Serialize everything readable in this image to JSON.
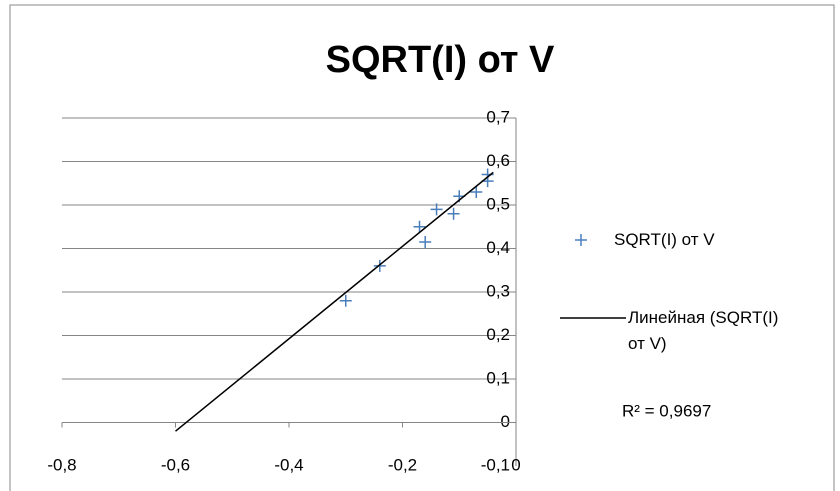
{
  "chart_data": {
    "type": "scatter",
    "title": "SQRT(I) от V",
    "series": [
      {
        "name": "SQRT(I) от V",
        "color": "#4a7ebb",
        "x": [
          -0.3,
          -0.24,
          -0.17,
          -0.16,
          -0.14,
          -0.11,
          -0.1,
          -0.07,
          -0.05,
          -0.05
        ],
        "values": [
          0.28,
          0.36,
          0.45,
          0.415,
          0.49,
          0.48,
          0.52,
          0.53,
          0.57,
          0.555
        ]
      }
    ],
    "trendline": {
      "name": "Линейная (SQRT(I) от V)",
      "color": "#000000",
      "x": [
        -0.6,
        -0.04
      ],
      "values": [
        -0.02,
        0.575
      ],
      "r2_label": "R² = 0,9697"
    },
    "xlim": [
      -0.8,
      0
    ],
    "xticks": [
      {
        "value": -0.8,
        "label": "-0,8"
      },
      {
        "value": -0.6,
        "label": "-0,6"
      },
      {
        "value": -0.4,
        "label": "-0,4"
      },
      {
        "value": -0.2,
        "label": "-0,2"
      },
      0
    ],
    "ylim": [
      -0.1,
      0.7
    ],
    "yticks": [
      {
        "value": -0.1,
        "label": "-0,1"
      },
      0,
      {
        "value": 0.1,
        "label": "0,1"
      },
      {
        "value": 0.2,
        "label": "0,2"
      },
      {
        "value": 0.3,
        "label": "0,3"
      },
      {
        "value": 0.4,
        "label": "0,4"
      },
      {
        "value": 0.5,
        "label": "0,5"
      },
      {
        "value": 0.6,
        "label": "0,6"
      },
      {
        "value": 0.7,
        "label": "0,7"
      }
    ],
    "grid": true
  }
}
